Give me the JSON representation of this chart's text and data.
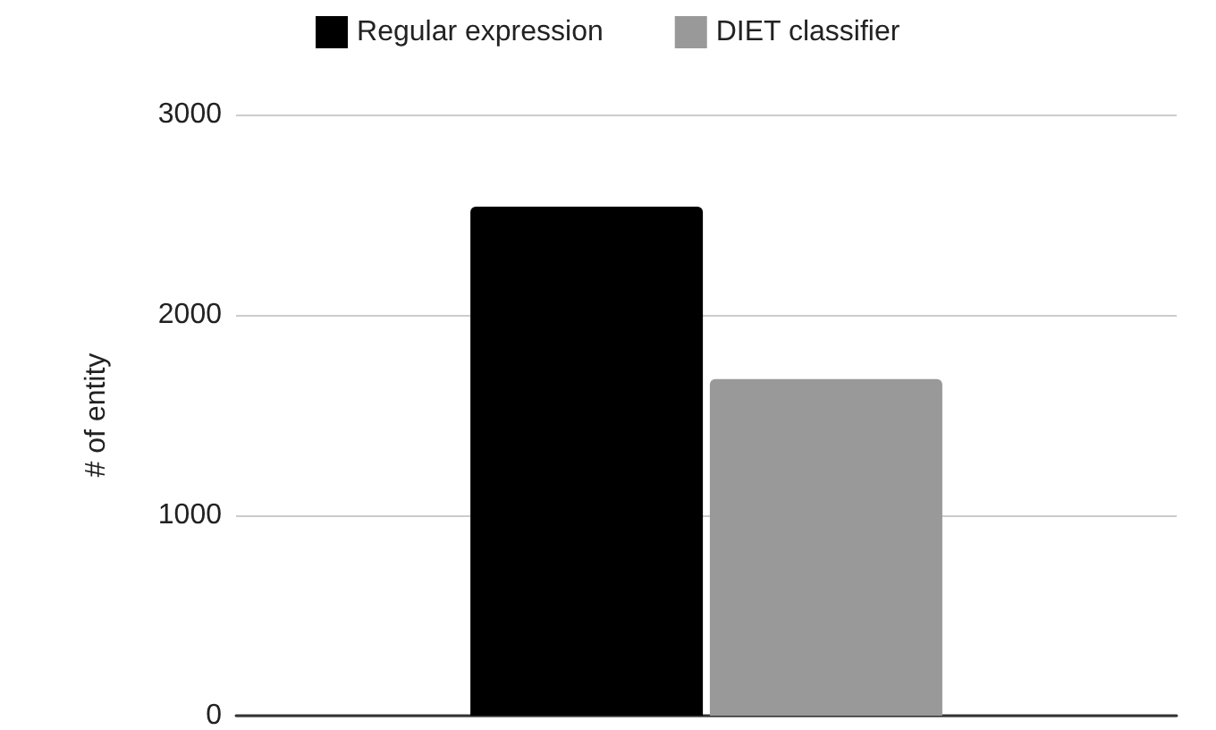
{
  "chart_data": {
    "type": "bar",
    "ylabel": "# of entity",
    "categories": [
      null
    ],
    "series": [
      {
        "name": "Regular expression",
        "color": "#000000",
        "values": [
          2540
        ]
      },
      {
        "name": "DIET classifier",
        "color": "#999999",
        "values": [
          1680
        ]
      }
    ],
    "ylim": [
      0,
      3000
    ],
    "yticks": [
      0,
      1000,
      2000,
      3000
    ],
    "grid": "y",
    "legend": "top"
  }
}
